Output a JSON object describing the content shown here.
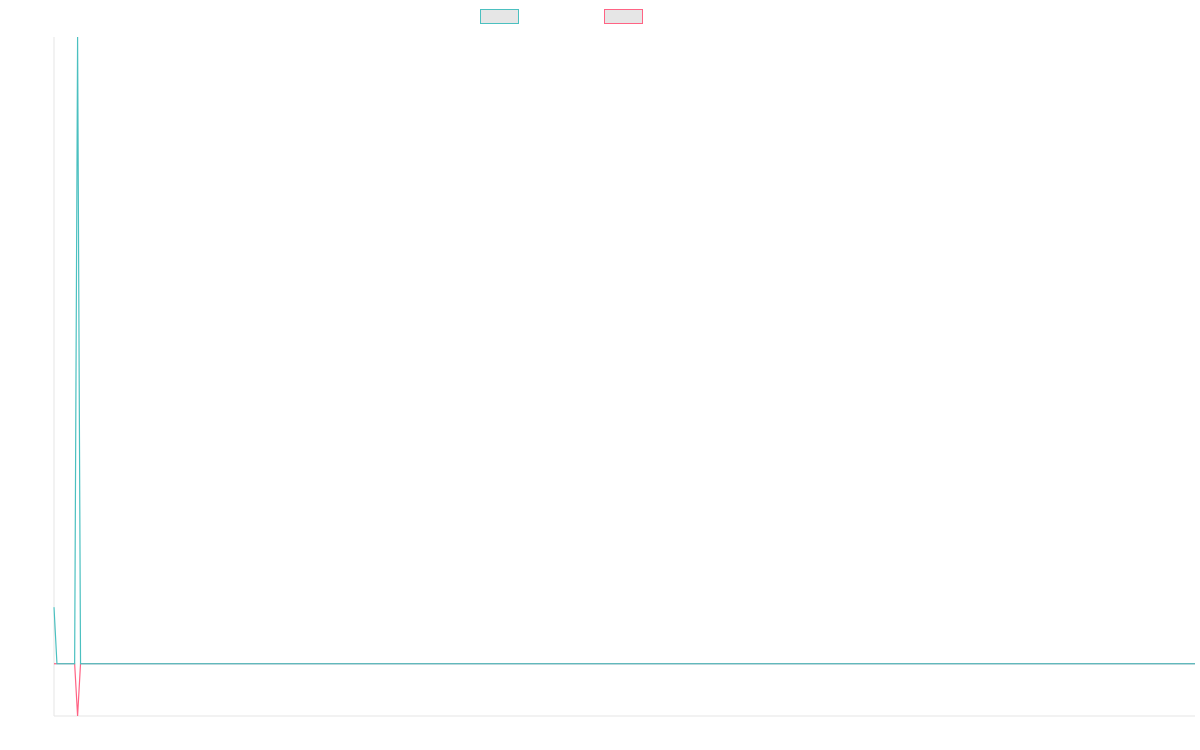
{
  "chart_data": {
    "type": "line",
    "title": "",
    "xlabel": "",
    "ylabel": "",
    "grid": false,
    "legend_position": "top-center",
    "series": [
      {
        "name": "",
        "color": "#4bc0c0",
        "values": [
          1.3,
          0.0,
          0.0,
          0.0,
          0.0,
          0.0,
          0.0,
          0.0,
          14.4,
          0.0,
          0.0,
          0.0,
          0.0,
          0.0,
          0.0,
          0.0,
          0.0,
          0.0,
          0.0,
          0.0,
          0.0,
          0.0,
          0.0,
          0.0,
          0.0,
          0.0,
          0.0,
          0.0,
          0.0,
          0.0,
          0.0,
          0.0,
          0.0,
          0.0,
          0.0,
          0.0,
          0.0,
          0.0,
          0.0,
          0.0,
          0.0,
          0.0,
          0.0,
          0.0,
          0.0,
          0.0,
          0.0,
          0.0,
          0.0,
          0.0,
          0.0,
          0.0,
          0.0,
          0.0,
          0.0,
          0.0,
          0.0,
          0.0,
          0.0,
          0.0,
          0.0,
          0.0,
          0.0,
          0.0,
          0.0,
          0.0,
          0.0,
          0.0,
          0.0,
          0.0,
          0.0,
          0.0,
          0.0,
          0.0,
          0.0,
          0.0,
          0.0,
          0.0,
          0.0,
          0.0,
          0.0,
          0.0,
          0.0,
          0.0,
          0.0,
          0.0,
          0.0,
          0.0,
          0.0,
          0.0,
          0.0,
          0.0,
          0.0,
          0.0,
          0.0,
          0.0,
          0.0,
          0.0,
          0.0,
          0.0,
          0.0,
          0.0,
          0.0,
          0.0,
          0.0,
          0.0,
          0.0,
          0.0,
          0.0,
          0.0,
          0.0,
          0.0,
          0.0,
          0.0,
          0.0,
          0.0,
          0.0,
          0.0,
          0.0,
          0.0,
          0.0,
          0.0,
          0.0,
          0.0,
          0.0,
          0.0,
          0.0,
          0.0,
          0.0,
          0.0,
          0.0,
          0.0,
          0.0,
          0.0,
          0.0,
          0.0,
          0.0,
          0.0,
          0.0,
          0.0,
          0.0,
          0.0,
          0.0,
          0.0,
          0.0,
          0.0,
          0.0,
          0.0,
          0.0,
          0.0,
          0.0,
          0.0,
          0.0,
          0.0,
          0.0,
          0.0,
          0.0,
          0.0,
          0.0,
          0.0,
          0.0,
          0.0,
          0.0,
          0.0,
          0.0,
          0.0,
          0.0,
          0.0,
          0.0,
          0.0,
          0.0,
          0.0,
          0.0,
          0.0,
          0.0,
          0.0,
          0.0,
          0.0,
          0.0,
          0.0,
          0.0,
          0.0,
          0.0,
          0.0,
          0.0,
          0.0,
          0.0,
          0.0,
          0.0,
          0.0,
          0.0,
          0.0,
          0.0,
          0.0,
          0.0,
          0.0,
          0.0,
          0.0,
          0.0,
          0.0,
          0.0,
          0.0,
          0.0,
          0.0,
          0.0,
          0.0,
          0.0,
          0.0,
          0.0,
          0.0,
          0.0,
          0.0,
          0.0,
          0.0,
          0.0,
          0.0,
          0.0,
          0.0,
          0.0,
          0.0,
          0.0,
          0.0,
          0.0,
          0.0,
          0.0,
          0.0,
          0.0,
          0.0,
          0.0,
          0.0,
          0.0,
          0.0,
          0.0,
          0.0,
          0.0,
          0.0,
          0.0,
          0.0,
          0.0,
          0.0,
          0.0,
          0.0,
          0.0,
          0.0,
          0.0,
          0.0,
          0.0,
          0.0,
          0.0,
          0.0,
          0.0,
          0.0,
          0.0,
          0.0,
          0.0,
          0.0,
          0.0,
          0.0,
          0.0,
          0.0,
          0.0,
          0.0,
          0.0,
          0.0,
          0.0,
          0.0,
          0.0,
          0.0,
          0.0,
          0.0,
          0.0,
          0.0,
          0.0,
          0.0,
          0.0,
          0.0,
          0.0,
          0.0,
          0.0,
          0.0,
          0.0,
          0.0,
          0.0,
          0.0,
          0.0,
          0.0,
          0.0,
          0.0,
          0.0,
          0.0,
          0.0,
          0.0,
          0.0,
          0.0,
          0.0,
          0.0,
          0.0,
          0.0,
          0.0,
          0.0,
          0.0,
          0.0,
          0.0,
          0.0,
          0.0,
          0.0,
          0.0,
          0.0,
          0.0,
          0.0,
          0.0,
          0.0,
          0.0,
          0.0,
          0.0,
          0.0,
          0.0,
          0.0,
          0.0,
          0.0,
          0.0,
          0.0,
          0.0,
          0.0,
          0.0,
          0.0,
          0.0,
          0.0,
          0.0,
          0.0,
          0.0,
          0.0,
          0.0,
          0.0,
          0.0,
          0.0,
          0.0,
          0.0,
          0.0,
          0.0,
          0.0,
          0.0,
          0.0,
          0.0,
          0.0,
          0.0,
          0.0,
          0.0,
          0.0,
          0.0,
          0.0,
          0.0,
          0.0,
          0.0,
          0.0,
          0.0,
          0.0,
          0.0,
          0.0,
          0.0,
          0.0,
          0.0,
          0.0,
          0.0,
          0.0,
          0.0,
          0.0,
          0.0,
          0.0,
          0.0,
          0.0,
          0.0,
          0.0,
          0.0,
          0.0,
          0.0,
          0.0,
          0.0,
          0.0,
          0.0,
          0.0,
          0.0,
          0.0,
          0.0,
          0.0,
          0.0,
          0.0,
          0.0
        ]
      },
      {
        "name": "",
        "color": "#ff6384",
        "values": [
          0.0,
          0.0,
          0.0,
          0.0,
          0.0,
          0.0,
          0.0,
          0.0,
          -1.2,
          0.0,
          0.0,
          0.0,
          0.0,
          0.0,
          0.0,
          0.0,
          0.0,
          0.0,
          0.0,
          0.0,
          0.0,
          0.0,
          0.0,
          0.0,
          0.0,
          0.0,
          0.0,
          0.0,
          0.0,
          0.0,
          0.0,
          0.0,
          0.0,
          0.0,
          0.0,
          0.0,
          0.0,
          0.0,
          0.0,
          0.0,
          0.0,
          0.0,
          0.0,
          0.0,
          0.0,
          0.0,
          0.0,
          0.0,
          0.0,
          0.0,
          0.0,
          0.0,
          0.0,
          0.0,
          0.0,
          0.0,
          0.0,
          0.0,
          0.0,
          0.0,
          0.0,
          0.0,
          0.0,
          0.0,
          0.0,
          0.0,
          0.0,
          0.0,
          0.0,
          0.0,
          0.0,
          0.0,
          0.0,
          0.0,
          0.0,
          0.0,
          0.0,
          0.0,
          0.0,
          0.0,
          0.0,
          0.0,
          0.0,
          0.0,
          0.0,
          0.0,
          0.0,
          0.0,
          0.0,
          0.0,
          0.0,
          0.0,
          0.0,
          0.0,
          0.0,
          0.0,
          0.0,
          0.0,
          0.0,
          0.0,
          0.0,
          0.0,
          0.0,
          0.0,
          0.0,
          0.0,
          0.0,
          0.0,
          0.0,
          0.0,
          0.0,
          0.0,
          0.0,
          0.0,
          0.0,
          0.0,
          0.0,
          0.0,
          0.0,
          0.0,
          0.0,
          0.0,
          0.0,
          0.0,
          0.0,
          0.0,
          0.0,
          0.0,
          0.0,
          0.0,
          0.0,
          0.0,
          0.0,
          0.0,
          0.0,
          0.0,
          0.0,
          0.0,
          0.0,
          0.0,
          0.0,
          0.0,
          0.0,
          0.0,
          0.0,
          0.0,
          0.0,
          0.0,
          0.0,
          0.0,
          0.0,
          0.0,
          0.0,
          0.0,
          0.0,
          0.0,
          0.0,
          0.0,
          0.0,
          0.0,
          0.0,
          0.0,
          0.0,
          0.0,
          0.0,
          0.0,
          0.0,
          0.0,
          0.0,
          0.0,
          0.0,
          0.0,
          0.0,
          0.0,
          0.0,
          0.0,
          0.0,
          0.0,
          0.0,
          0.0,
          0.0,
          0.0,
          0.0,
          0.0,
          0.0,
          0.0,
          0.0,
          0.0,
          0.0,
          0.0,
          0.0,
          0.0,
          0.0,
          0.0,
          0.0,
          0.0,
          0.0,
          0.0,
          0.0,
          0.0,
          0.0,
          0.0,
          0.0,
          0.0,
          0.0,
          0.0,
          0.0,
          0.0,
          0.0,
          0.0,
          0.0,
          0.0,
          0.0,
          0.0,
          0.0,
          0.0,
          0.0,
          0.0,
          0.0,
          0.0,
          0.0,
          0.0,
          0.0,
          0.0,
          0.0,
          0.0,
          0.0,
          0.0,
          0.0,
          0.0,
          0.0,
          0.0,
          0.0,
          0.0,
          0.0,
          0.0,
          0.0,
          0.0,
          0.0,
          0.0,
          0.0,
          0.0,
          0.0,
          0.0,
          0.0,
          0.0,
          0.0,
          0.0,
          0.0,
          0.0,
          0.0,
          0.0,
          0.0,
          0.0,
          0.0,
          0.0,
          0.0,
          0.0,
          0.0,
          0.0,
          0.0,
          0.0,
          0.0,
          0.0,
          0.0,
          0.0,
          0.0,
          0.0,
          0.0,
          0.0,
          0.0,
          0.0,
          0.0,
          0.0,
          0.0,
          0.0,
          0.0,
          0.0,
          0.0,
          0.0,
          0.0,
          0.0,
          0.0,
          0.0,
          0.0,
          0.0,
          0.0,
          0.0,
          0.0,
          0.0,
          0.0,
          0.0,
          0.0,
          0.0,
          0.0,
          0.0,
          0.0,
          0.0,
          0.0,
          0.0,
          0.0,
          0.0,
          0.0,
          0.0,
          0.0,
          0.0,
          0.0,
          0.0,
          0.0,
          0.0,
          0.0,
          0.0,
          0.0,
          0.0,
          0.0,
          0.0,
          0.0,
          0.0,
          0.0,
          0.0,
          0.0,
          0.0,
          0.0,
          0.0,
          0.0,
          0.0,
          0.0,
          0.0,
          0.0,
          0.0,
          0.0,
          0.0,
          0.0,
          0.0,
          0.0,
          0.0,
          0.0,
          0.0,
          0.0,
          0.0,
          0.0,
          0.0,
          0.0,
          0.0,
          0.0,
          0.0,
          0.0,
          0.0,
          0.0,
          0.0,
          0.0,
          0.0,
          0.0,
          0.0,
          0.0,
          0.0,
          0.0,
          0.0,
          0.0,
          0.0,
          0.0,
          0.0,
          0.0,
          0.0,
          0.0,
          0.0,
          0.0,
          0.0,
          0.0,
          0.0,
          0.0,
          0.0,
          0.0,
          0.0,
          0.0,
          0.0,
          0.0,
          0.0,
          0.0,
          0.0,
          0.0,
          0.0,
          0.0,
          0.0,
          0.0,
          0.0,
          0.0,
          0.0
        ]
      }
    ],
    "ylim": [
      -1.2,
      14.4
    ]
  }
}
